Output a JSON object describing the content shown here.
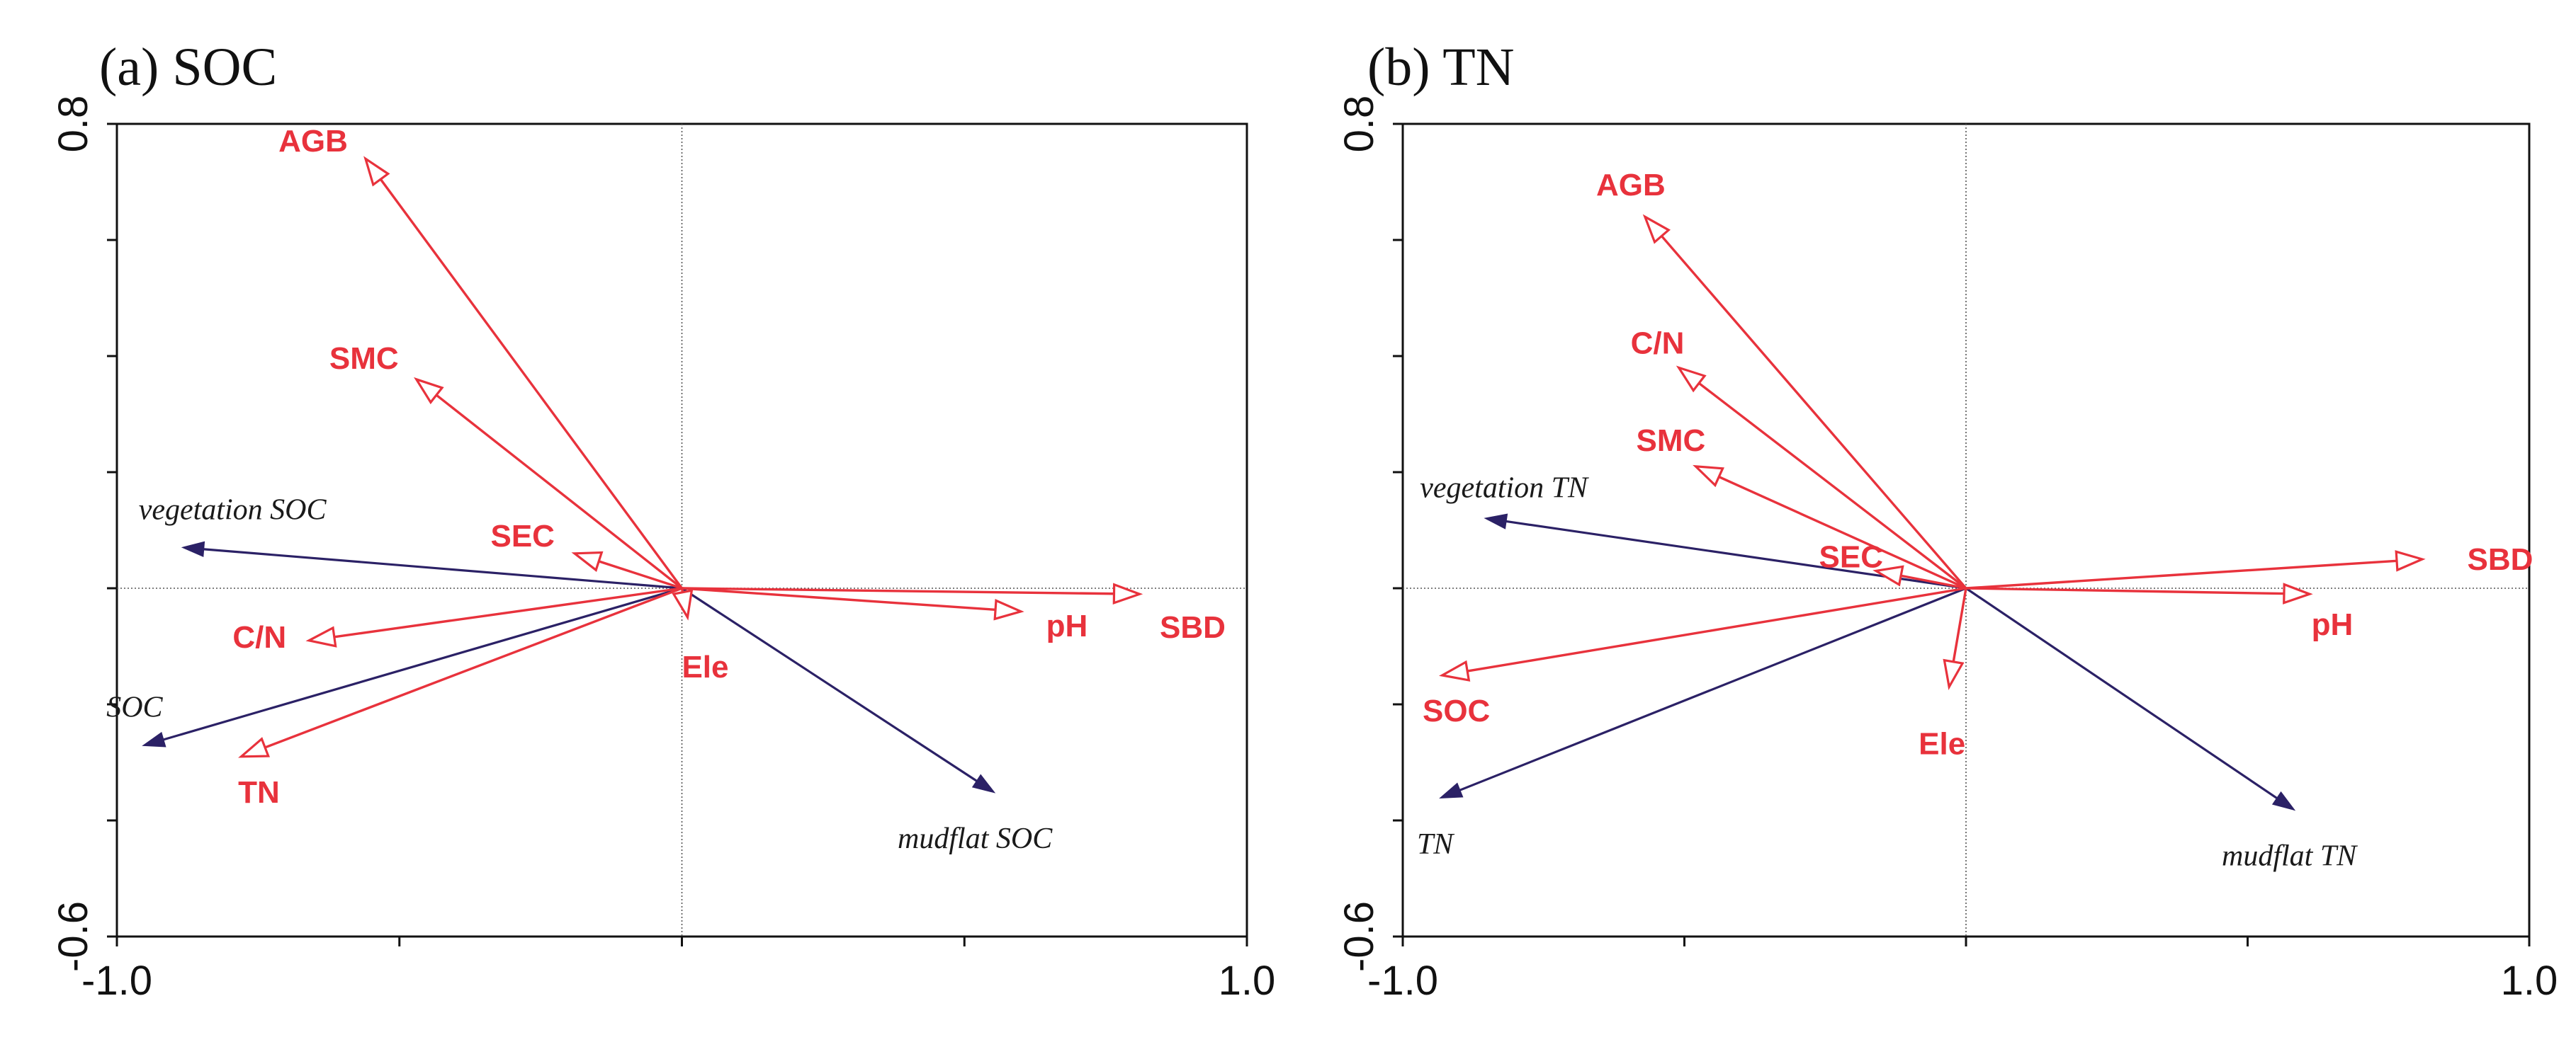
{
  "colors": {
    "env": "#e8323c",
    "response": "#2b2166",
    "axis": "#111111"
  },
  "chart_data": [
    {
      "type": "scatter",
      "subtype": "rda-biplot",
      "title": "(a) SOC",
      "xlim": [
        -1.0,
        1.0
      ],
      "ylim": [
        -0.6,
        0.8
      ],
      "x_tick_labels": [
        "-1.0",
        "1.0"
      ],
      "y_tick_labels": [
        "0.8",
        "-0.6"
      ],
      "reference_lines": {
        "x": 0,
        "y": 0
      },
      "grid": false,
      "environmental_vectors": [
        {
          "name": "AGB",
          "x": -0.56,
          "y": 0.74
        },
        {
          "name": "SMC",
          "x": -0.47,
          "y": 0.36
        },
        {
          "name": "SEC",
          "x": -0.19,
          "y": 0.06
        },
        {
          "name": "C/N",
          "x": -0.66,
          "y": -0.09
        },
        {
          "name": "TN",
          "x": -0.78,
          "y": -0.29
        },
        {
          "name": "Ele",
          "x": 0.01,
          "y": -0.05
        },
        {
          "name": "pH",
          "x": 0.6,
          "y": -0.04
        },
        {
          "name": "SBD",
          "x": 0.81,
          "y": -0.01
        }
      ],
      "response_vectors": [
        {
          "name": "vegetation SOC",
          "x": -0.88,
          "y": 0.07
        },
        {
          "name": "SOC",
          "x": -0.95,
          "y": -0.27
        },
        {
          "name": "mudflat SOC",
          "x": 0.55,
          "y": -0.35
        }
      ]
    },
    {
      "type": "scatter",
      "subtype": "rda-biplot",
      "title": "(b) TN",
      "xlim": [
        -1.0,
        1.0
      ],
      "ylim": [
        -0.6,
        0.8
      ],
      "x_tick_labels": [
        "-1.0",
        "1.0"
      ],
      "y_tick_labels": [
        "0.8",
        "-0.6"
      ],
      "reference_lines": {
        "x": 0,
        "y": 0
      },
      "grid": false,
      "environmental_vectors": [
        {
          "name": "AGB",
          "x": -0.57,
          "y": 0.64
        },
        {
          "name": "C/N",
          "x": -0.51,
          "y": 0.38
        },
        {
          "name": "SMC",
          "x": -0.48,
          "y": 0.21
        },
        {
          "name": "SEC",
          "x": -0.16,
          "y": 0.03
        },
        {
          "name": "SOC",
          "x": -0.93,
          "y": -0.15
        },
        {
          "name": "Ele",
          "x": -0.03,
          "y": -0.17
        },
        {
          "name": "pH",
          "x": 0.61,
          "y": -0.01
        },
        {
          "name": "SBD",
          "x": 0.81,
          "y": 0.05
        }
      ],
      "response_vectors": [
        {
          "name": "vegetation TN",
          "x": -0.85,
          "y": 0.12
        },
        {
          "name": "TN",
          "x": -0.93,
          "y": -0.36
        },
        {
          "name": "mudflat TN",
          "x": 0.58,
          "y": -0.38
        }
      ]
    }
  ]
}
